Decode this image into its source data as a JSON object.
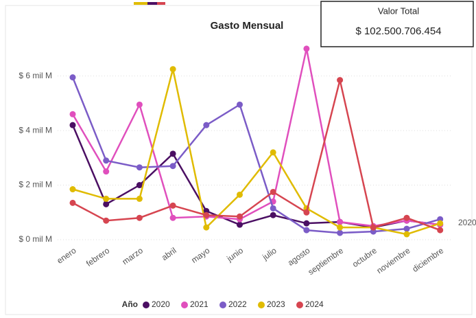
{
  "card": {
    "title": "Valor Total",
    "value": "$ 102.500.706.454"
  },
  "chart_data": {
    "type": "line",
    "title": "Gasto Mensual",
    "legend_title": "Año",
    "legend": "bottom",
    "grid": true,
    "categories": [
      "enero",
      "febrero",
      "marzo",
      "abril",
      "mayo",
      "junio",
      "julio",
      "agosto",
      "septiembre",
      "octubre",
      "noviembre",
      "diciembre"
    ],
    "ylim": [
      0,
      7.3
    ],
    "yticks": [
      {
        "value": 0,
        "label": "$ 0 mil M"
      },
      {
        "value": 2,
        "label": "$ 2 mil M"
      },
      {
        "value": 4,
        "label": "$ 4 mil M"
      },
      {
        "value": 6,
        "label": "$ 6 mil M"
      }
    ],
    "series": [
      {
        "name": "2020",
        "color": "#4b0f63",
        "values": [
          4.2,
          1.3,
          2.0,
          3.15,
          1.05,
          0.55,
          0.9,
          0.6,
          0.65,
          0.45,
          0.7,
          0.55
        ]
      },
      {
        "name": "2021",
        "color": "#e04fbd",
        "values": [
          4.6,
          2.5,
          4.95,
          0.8,
          0.85,
          0.75,
          1.4,
          7.0,
          0.65,
          0.5,
          0.7,
          0.55
        ]
      },
      {
        "name": "2022",
        "color": "#7b5cc7",
        "values": [
          5.95,
          2.9,
          2.65,
          2.7,
          4.2,
          4.95,
          1.15,
          0.35,
          0.25,
          0.3,
          0.4,
          0.75
        ]
      },
      {
        "name": "2023",
        "color": "#e0bb00",
        "values": [
          1.85,
          1.5,
          1.5,
          6.25,
          0.45,
          1.65,
          3.2,
          1.15,
          0.45,
          0.45,
          0.2,
          0.6
        ]
      },
      {
        "name": "2024",
        "color": "#d64550",
        "values": [
          1.35,
          0.7,
          0.8,
          1.25,
          0.9,
          0.85,
          1.75,
          1.0,
          5.85,
          0.45,
          0.8,
          0.35
        ]
      }
    ]
  }
}
